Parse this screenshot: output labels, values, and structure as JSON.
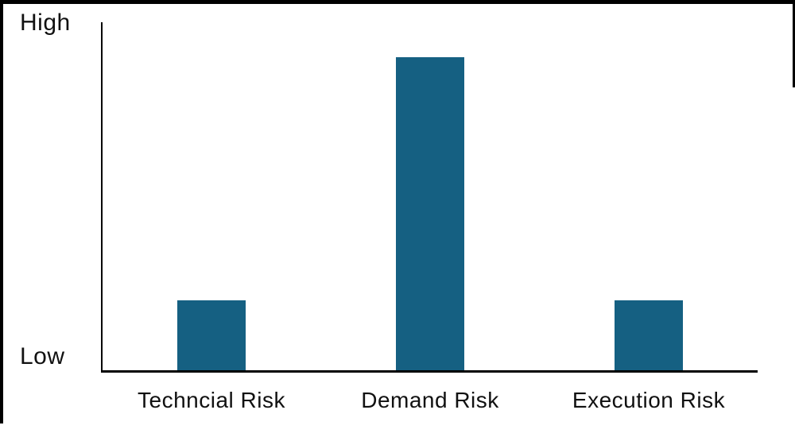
{
  "chart_data": {
    "type": "bar",
    "title": "",
    "categories": [
      "Techncial Risk",
      "Demand Risk",
      "Execution Risk"
    ],
    "values": [
      0.2,
      0.9,
      0.2
    ],
    "ylim": [
      0,
      1
    ],
    "xlabel": "",
    "ylabel": "",
    "y_axis_labels": {
      "top": "High",
      "bottom": "Low"
    },
    "grid": false,
    "legend": false,
    "bar_color": "#156082",
    "axis_color": "#000000",
    "frame_border_color": "#000000",
    "text_color": "#111111"
  }
}
